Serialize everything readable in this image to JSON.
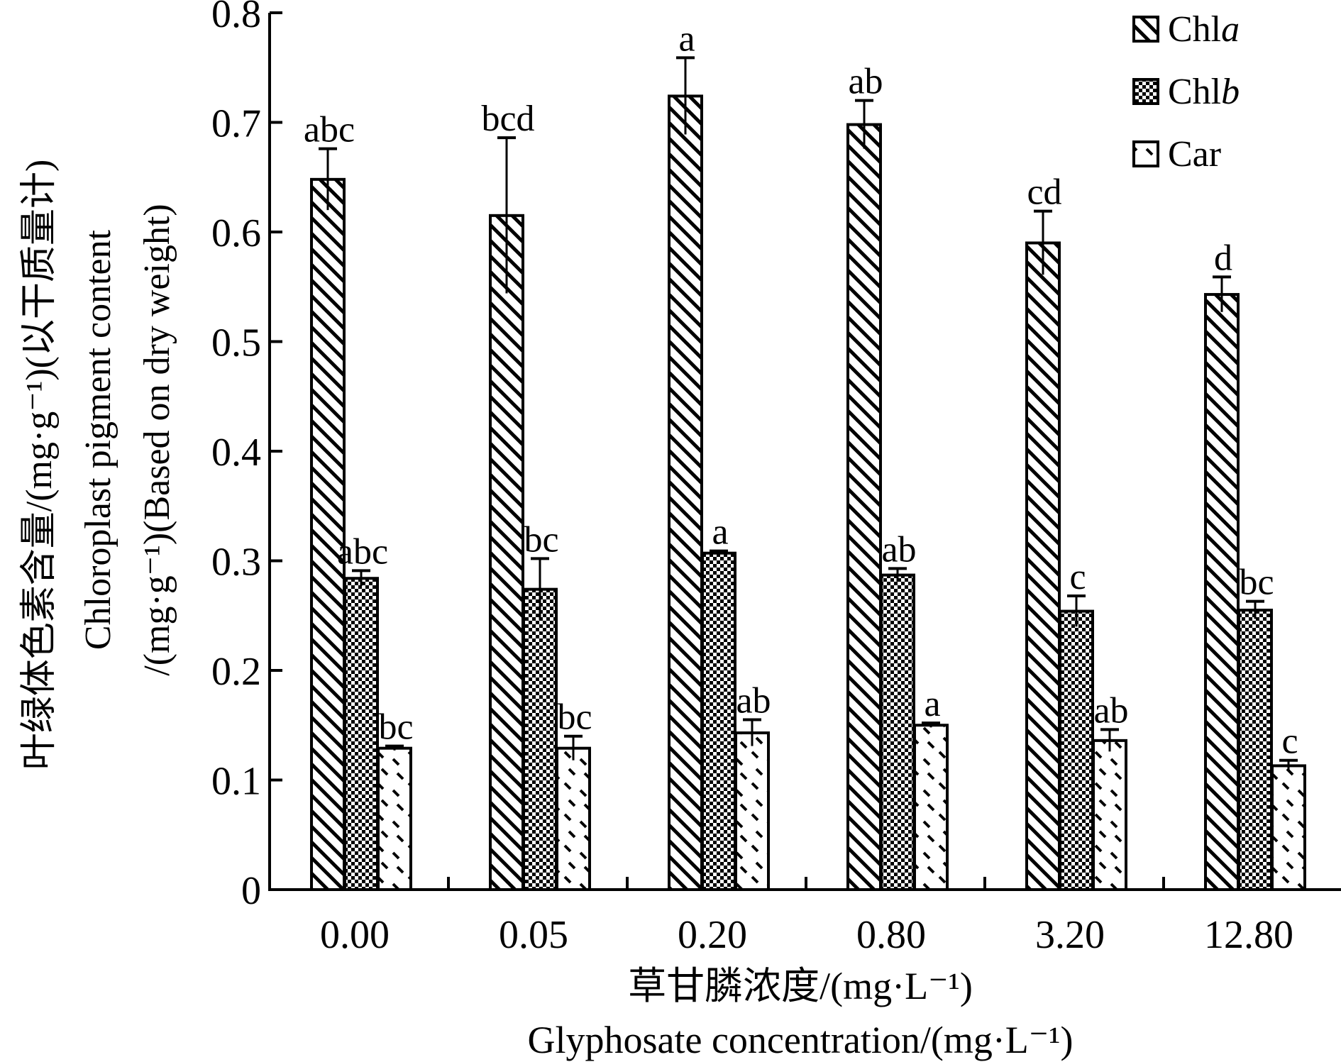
{
  "chart_data": {
    "type": "bar",
    "categories": [
      "0.00",
      "0.05",
      "0.20",
      "0.80",
      "3.20",
      "12.80"
    ],
    "series": [
      {
        "name": "Chla",
        "name_base": "Chl",
        "name_italic": "a",
        "pattern": "diagonal-hatch",
        "values": [
          0.648,
          0.615,
          0.724,
          0.698,
          0.59,
          0.543
        ],
        "errors": [
          0.028,
          0.071,
          0.035,
          0.022,
          0.029,
          0.016
        ],
        "significance": [
          "abc",
          "bcd",
          "a",
          "ab",
          "cd",
          "d"
        ]
      },
      {
        "name": "Chlb",
        "name_base": "Chl",
        "name_italic": "b",
        "pattern": "checker",
        "values": [
          0.284,
          0.274,
          0.307,
          0.287,
          0.254,
          0.255
        ],
        "errors": [
          0.007,
          0.028,
          0.002,
          0.006,
          0.014,
          0.008
        ],
        "significance": [
          "abc",
          "bc",
          "a",
          "ab",
          "c",
          "bc"
        ]
      },
      {
        "name": "Car",
        "name_base": "Car",
        "name_italic": "",
        "pattern": "sparse-dash",
        "values": [
          0.129,
          0.129,
          0.143,
          0.15,
          0.136,
          0.113
        ],
        "errors": [
          0.002,
          0.011,
          0.012,
          0.002,
          0.01,
          0.005
        ],
        "significance": [
          "bc",
          "bc",
          "ab",
          "a",
          "ab",
          "c"
        ]
      }
    ],
    "ylim": [
      0,
      0.8
    ],
    "yticks": [
      "0",
      "0.1",
      "0.2",
      "0.3",
      "0.4",
      "0.5",
      "0.6",
      "0.7",
      "0.8"
    ],
    "ylabel_line1": "叶绿体色素含量/(mg·g⁻¹)(以干质量计)",
    "ylabel_line2": "Chloroplast pigment content",
    "ylabel_line3": "/(mg·g⁻¹)(Based on dry weight)",
    "xlabel_line1": "草甘膦浓度/(mg·L⁻¹)",
    "xlabel_line2": "Glyphosate concentration/(mg·L⁻¹)",
    "legend_position": "top-right",
    "grid": false
  }
}
